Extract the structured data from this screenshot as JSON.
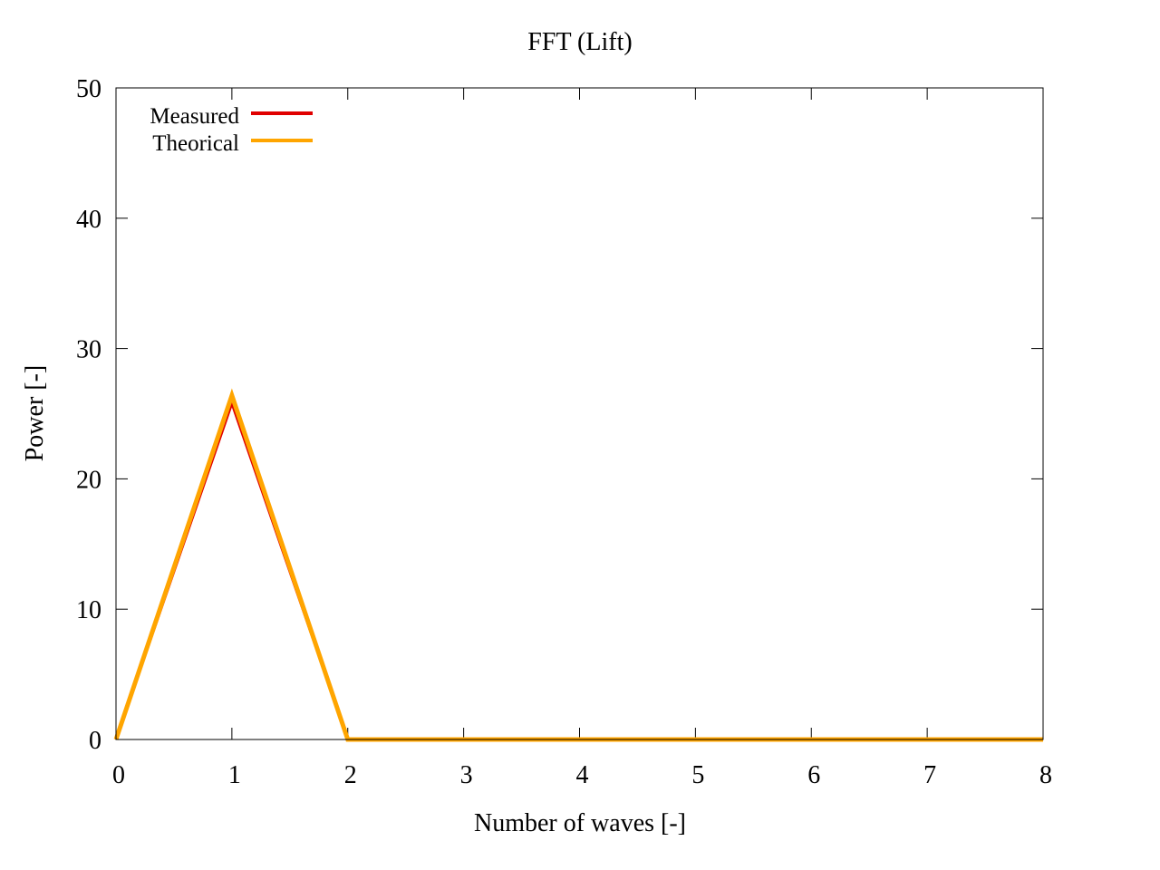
{
  "chart_data": {
    "type": "line",
    "title": "FFT (Lift)",
    "xlabel": "Number of waves [-]",
    "ylabel": "Power [-]",
    "xlim": [
      0,
      8
    ],
    "ylim": [
      0,
      50
    ],
    "xticks": [
      0,
      1,
      2,
      3,
      4,
      5,
      6,
      7,
      8
    ],
    "yticks": [
      0,
      10,
      20,
      30,
      40,
      50
    ],
    "legend_position": "top-left",
    "series": [
      {
        "name": "Measured",
        "color": "#e00000",
        "x": [
          0,
          1,
          2,
          3,
          4,
          5,
          6,
          7,
          8
        ],
        "values": [
          0,
          25.8,
          0,
          0,
          0,
          0,
          0,
          0,
          0
        ]
      },
      {
        "name": "Theorical",
        "color": "#ffa500",
        "x": [
          0,
          1,
          2,
          3,
          4,
          5,
          6,
          7,
          8
        ],
        "values": [
          0,
          26.4,
          0,
          0,
          0,
          0,
          0,
          0,
          0
        ]
      }
    ]
  }
}
